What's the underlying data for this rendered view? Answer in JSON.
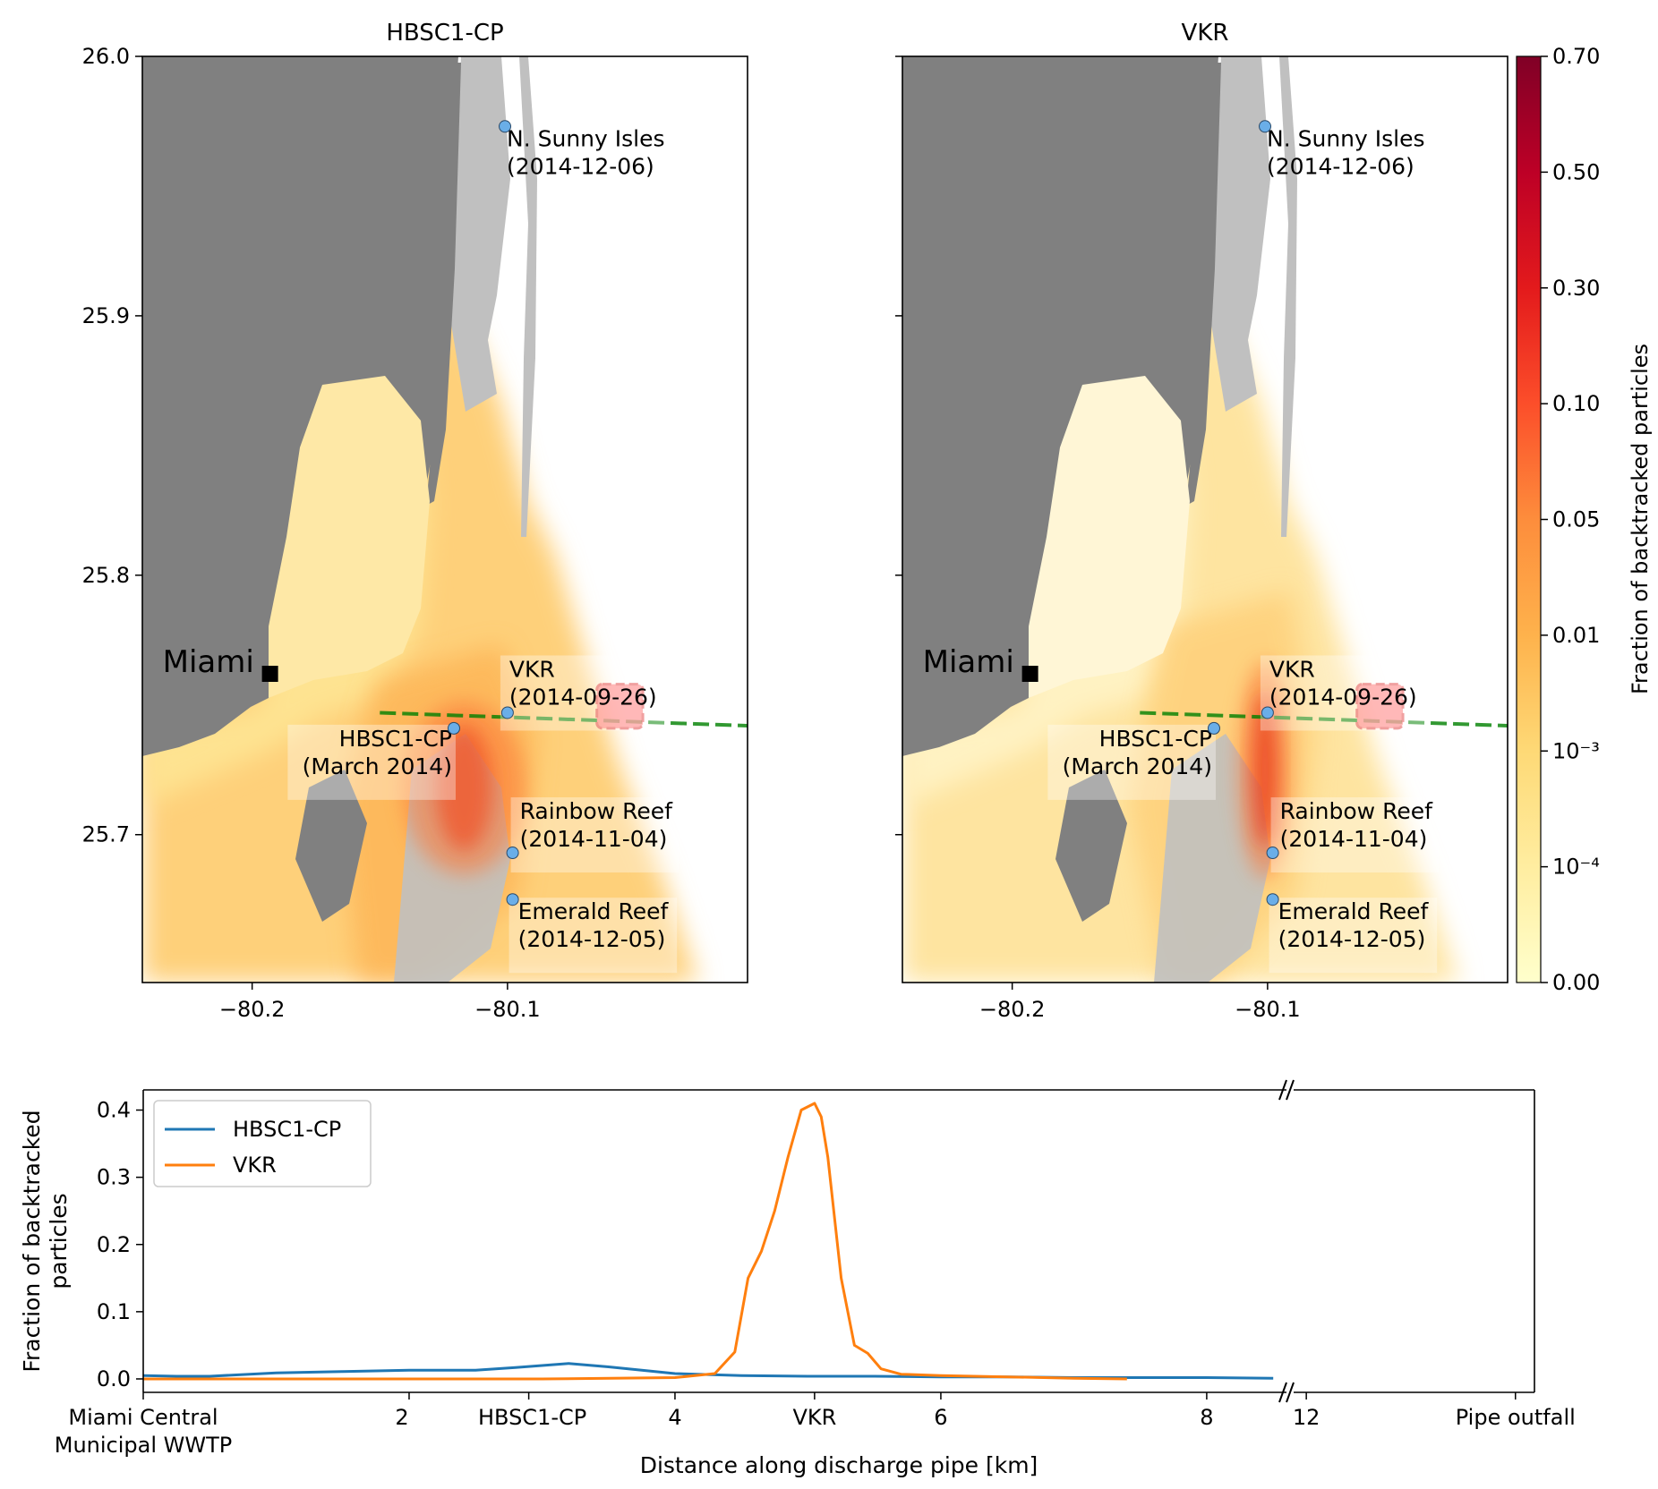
{
  "colors": {
    "land": "#808080",
    "shoal": "#c0c0c0",
    "pipe_line": "#008000",
    "box_fill": "#ff6666",
    "box_edge": "#e03030",
    "site_marker": "#6aaee8",
    "hbsc_series": "#1f77b4",
    "vkr_series": "#ff7f0e",
    "colormap": [
      "#ffffcc",
      "#ffeda0",
      "#fed976",
      "#feb24c",
      "#fd8d3c",
      "#fc4e2a",
      "#e31a1c",
      "#bd0026",
      "#800026"
    ]
  },
  "chart_data": [
    {
      "type": "heatmap",
      "title": "HBSC1-CP",
      "x_ticks": [
        "−80.2",
        "−80.1"
      ],
      "y_ticks": [
        "26.0",
        "25.9",
        "25.8",
        "25.7"
      ],
      "xlim": [
        -80.243,
        -80.006
      ],
      "ylim": [
        25.643,
        26.0
      ],
      "city": {
        "label": "Miami",
        "lon": -80.193,
        "lat": 25.762
      },
      "sites": [
        {
          "lines": [
            "N. Sunny Isles",
            "(2014-12-06)"
          ],
          "lon": -80.101,
          "lat": 25.973
        },
        {
          "lines": [
            "VKR",
            "(2014-09-26)"
          ],
          "lon": -80.1,
          "lat": 25.747
        },
        {
          "lines": [
            "HBSC1-CP",
            "(March 2014)"
          ],
          "lon": -80.121,
          "lat": 25.741
        },
        {
          "lines": [
            "Rainbow Reef",
            "(2014-11-04)"
          ],
          "lon": -80.098,
          "lat": 25.693
        },
        {
          "lines": [
            "Emerald Reef",
            "(2014-12-05)"
          ],
          "lon": -80.098,
          "lat": 25.675
        }
      ],
      "discharge_pipe": [
        [
          -80.15,
          25.747
        ],
        [
          -80.006,
          25.742
        ]
      ],
      "outfall_box": {
        "lon": [
          -80.065,
          -80.047
        ],
        "lat": [
          25.741,
          25.758
        ]
      },
      "hotspots": [
        {
          "lon": -80.117,
          "lat": 25.718,
          "peak": 0.12,
          "spread_lon": 0.011,
          "spread_lat": 0.024
        }
      ]
    },
    {
      "type": "heatmap",
      "title": "VKR",
      "x_ticks": [
        "−80.2",
        "−80.1"
      ],
      "y_ticks": [],
      "xlim": [
        -80.243,
        -80.006
      ],
      "ylim": [
        25.643,
        26.0
      ],
      "city": {
        "label": "Miami",
        "lon": -80.193,
        "lat": 25.762
      },
      "sites": [
        {
          "lines": [
            "N. Sunny Isles",
            "(2014-12-06)"
          ],
          "lon": -80.101,
          "lat": 25.973
        },
        {
          "lines": [
            "VKR",
            "(2014-09-26)"
          ],
          "lon": -80.1,
          "lat": 25.747
        },
        {
          "lines": [
            "HBSC1-CP",
            "(March 2014)"
          ],
          "lon": -80.121,
          "lat": 25.741
        },
        {
          "lines": [
            "Rainbow Reef",
            "(2014-11-04)"
          ],
          "lon": -80.098,
          "lat": 25.693
        },
        {
          "lines": [
            "Emerald Reef",
            "(2014-12-05)"
          ],
          "lon": -80.098,
          "lat": 25.675
        }
      ],
      "discharge_pipe": [
        [
          -80.15,
          25.747
        ],
        [
          -80.006,
          25.742
        ]
      ],
      "outfall_box": {
        "lon": [
          -80.065,
          -80.047
        ],
        "lat": [
          25.741,
          25.758
        ]
      },
      "hotspots": [
        {
          "lon": -80.101,
          "lat": 25.725,
          "peak": 0.3,
          "spread_lon": 0.005,
          "spread_lat": 0.03
        }
      ]
    },
    {
      "type": "heatmap",
      "role": "colorbar",
      "label": "Fraction of backtracked particles",
      "tick_labels": [
        "0.70",
        "0.50",
        "0.30",
        "0.10",
        "0.05",
        "0.01",
        "10⁻³",
        "10⁻⁴",
        "0.00"
      ],
      "tick_values": [
        0.7,
        0.5,
        0.3,
        0.1,
        0.05,
        0.01,
        0.001,
        0.0001,
        0
      ]
    },
    {
      "type": "line",
      "xlabel": "Distance along discharge pipe [km]",
      "ylabel": "Fraction of backtracked particles",
      "ylim": [
        -0.02,
        0.43
      ],
      "y_ticks": [
        "0.0",
        "0.1",
        "0.2",
        "0.3",
        "0.4"
      ],
      "x_tick_labels": [
        {
          "value": 0,
          "label": "Miami Central\nMunicipal WWTP"
        },
        {
          "value": 2,
          "label": "2"
        },
        {
          "value": 2.9,
          "label": "HBSC1-CP"
        },
        {
          "value": 4,
          "label": "4"
        },
        {
          "value": 5.05,
          "label": "VKR"
        },
        {
          "value": 6,
          "label": "6"
        },
        {
          "value": 8,
          "label": "8"
        },
        {
          "value": 12,
          "label": "12"
        },
        {
          "value": 15.3,
          "label": "Pipe outfall"
        }
      ],
      "axis_break": 8.6,
      "legend": "upper-left",
      "series": [
        {
          "name": "HBSC1-CP",
          "x": [
            0,
            0.25,
            0.5,
            1.0,
            1.5,
            2.0,
            2.5,
            2.8,
            3.0,
            3.2,
            3.5,
            3.8,
            4.0,
            4.5,
            5.0,
            5.5,
            6.0,
            6.5,
            7.0,
            7.5,
            8.0,
            8.5
          ],
          "y": [
            0.005,
            0.004,
            0.004,
            0.009,
            0.011,
            0.013,
            0.013,
            0.017,
            0.02,
            0.023,
            0.018,
            0.012,
            0.008,
            0.005,
            0.004,
            0.004,
            0.003,
            0.003,
            0.002,
            0.002,
            0.002,
            0.001
          ]
        },
        {
          "name": "VKR",
          "x": [
            0,
            1.0,
            2.0,
            3.0,
            4.0,
            4.3,
            4.45,
            4.55,
            4.65,
            4.75,
            4.85,
            4.95,
            5.05,
            5.1,
            5.15,
            5.25,
            5.35,
            5.45,
            5.55,
            5.7,
            6.0,
            6.5,
            7.0,
            7.4
          ],
          "y": [
            0.0,
            0.0,
            0.0,
            0.0,
            0.002,
            0.008,
            0.04,
            0.15,
            0.19,
            0.25,
            0.33,
            0.4,
            0.41,
            0.39,
            0.33,
            0.15,
            0.05,
            0.038,
            0.015,
            0.007,
            0.005,
            0.003,
            0.001,
            0.0
          ]
        }
      ]
    }
  ]
}
